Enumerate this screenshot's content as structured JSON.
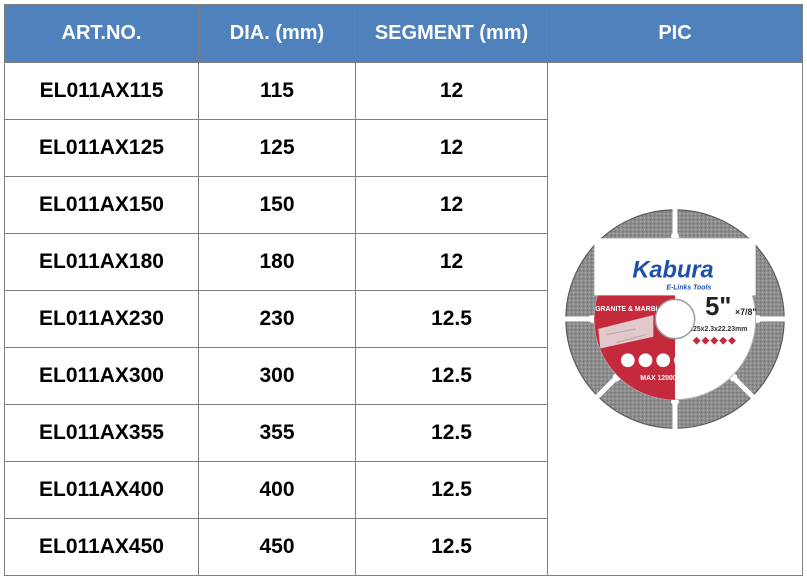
{
  "columns": [
    "ART.NO.",
    "DIA. (mm)",
    "SEGMENT (mm)",
    "PIC"
  ],
  "rows": [
    {
      "art_no": "EL011AX115",
      "dia": "115",
      "segment": "12"
    },
    {
      "art_no": "EL011AX125",
      "dia": "125",
      "segment": "12"
    },
    {
      "art_no": "EL011AX150",
      "dia": "150",
      "segment": "12"
    },
    {
      "art_no": "EL011AX180",
      "dia": "180",
      "segment": "12"
    },
    {
      "art_no": "EL011AX230",
      "dia": "230",
      "segment": "12.5"
    },
    {
      "art_no": "EL011AX300",
      "dia": "300",
      "segment": "12.5"
    },
    {
      "art_no": "EL011AX355",
      "dia": "355",
      "segment": "12.5"
    },
    {
      "art_no": "EL011AX400",
      "dia": "400",
      "segment": "12.5"
    },
    {
      "art_no": "EL011AX450",
      "dia": "450",
      "segment": "12.5"
    }
  ],
  "product_image": {
    "icon": "diamond-saw-blade",
    "brand": "Kabura",
    "sub_brand": "E-Links Tools",
    "size": "5\"",
    "bore": "×7/8\"",
    "application": "GRANITE & MARBLE",
    "dimensions": "125x2.3x22.23mm",
    "max_speed": "MAX 12000RPM 80M/S",
    "colors": {
      "label": "#c4293c",
      "segment": "#8c8c8c",
      "brand_text": "#1f4fa8"
    }
  },
  "colors": {
    "header_bg": "#4f81bd",
    "header_text": "#ffffff",
    "border": "#7f7f7f"
  }
}
